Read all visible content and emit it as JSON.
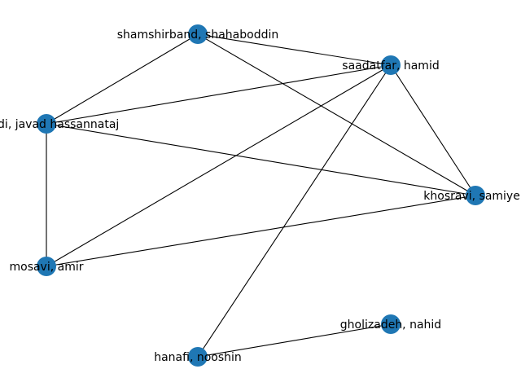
{
  "graph": {
    "node_color": "#1f77b4",
    "edge_color": "#000000",
    "nodes": [
      {
        "id": "shamshirband",
        "label": "shamshirband, shahaboddin"
      },
      {
        "id": "saadatfar",
        "label": "saadatfar, hamid"
      },
      {
        "id": "javad",
        "label": "javadi, javad hassannataj"
      },
      {
        "id": "khosravi",
        "label": "khosravi, samiyeh"
      },
      {
        "id": "mosavi",
        "label": "mosavi, amir"
      },
      {
        "id": "gholizadeh",
        "label": "gholizadeh, nahid"
      },
      {
        "id": "hanafi",
        "label": "hanafi, nooshin"
      }
    ],
    "edges": [
      [
        "shamshirband",
        "saadatfar"
      ],
      [
        "shamshirband",
        "javad"
      ],
      [
        "shamshirband",
        "khosravi"
      ],
      [
        "saadatfar",
        "javad"
      ],
      [
        "saadatfar",
        "khosravi"
      ],
      [
        "saadatfar",
        "mosavi"
      ],
      [
        "saadatfar",
        "hanafi"
      ],
      [
        "javad",
        "khosravi"
      ],
      [
        "javad",
        "mosavi"
      ],
      [
        "khosravi",
        "mosavi"
      ],
      [
        "hanafi",
        "gholizadeh"
      ]
    ]
  }
}
